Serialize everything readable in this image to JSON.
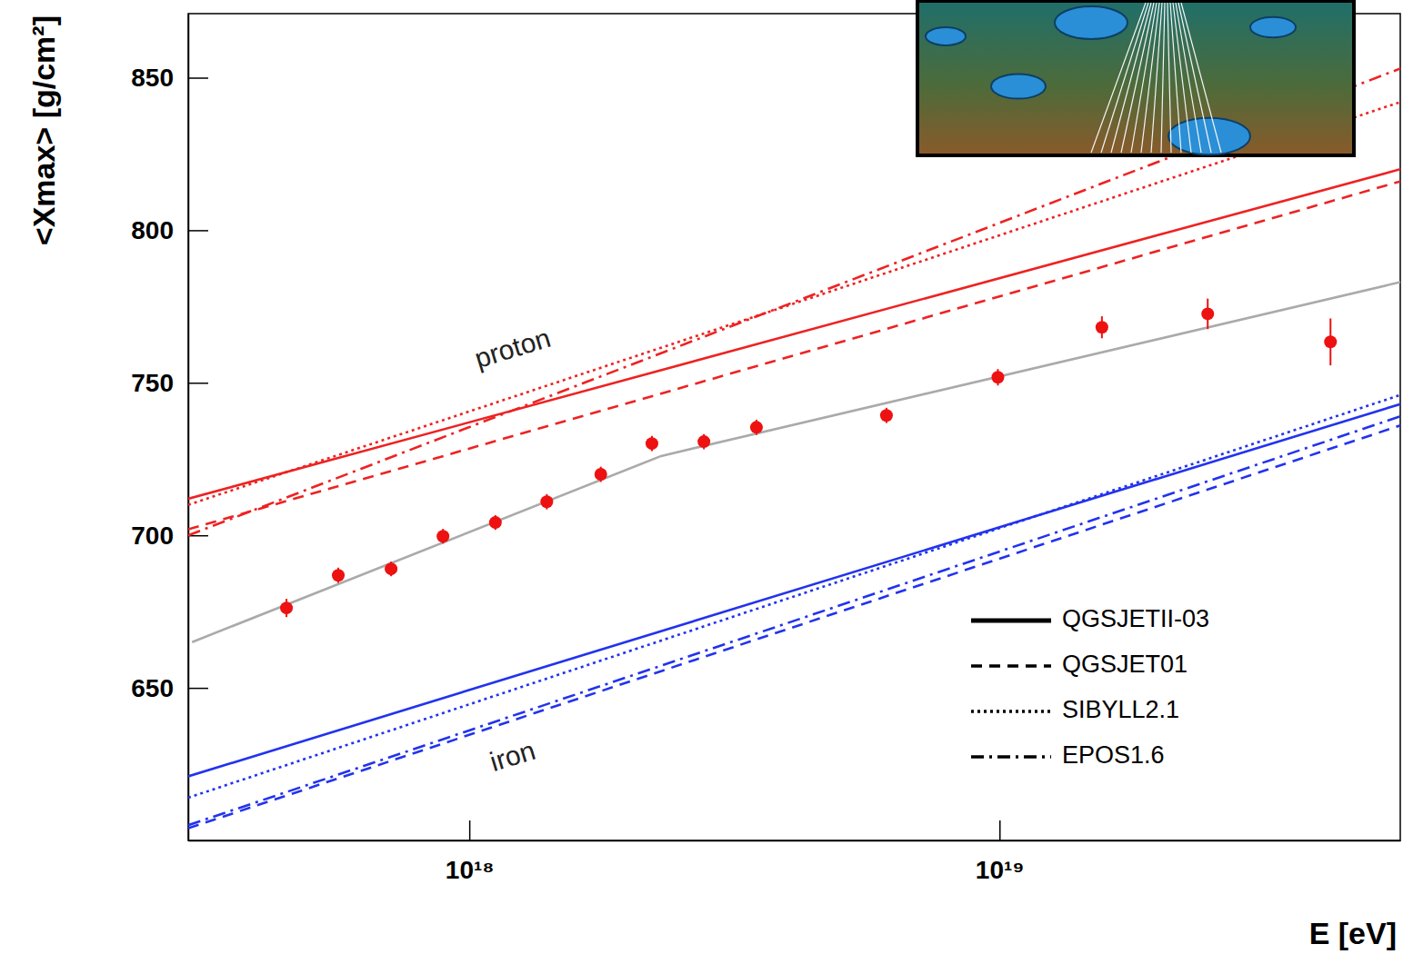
{
  "chart_data": {
    "type": "line",
    "x_label": "E [eV]",
    "y_label": "<Xmax> [g/cm²]",
    "log": "x",
    "legend": "lower right",
    "xlim": [
      2.95e+17,
      5.7e+19
    ],
    "ylim": [
      600,
      871
    ],
    "xticks": [
      {
        "value": 1e+18,
        "label": "10¹⁸"
      },
      {
        "value": 1e+19,
        "label": "10¹⁹"
      }
    ],
    "yticks": [
      650,
      700,
      750,
      800,
      850
    ],
    "annotations": [
      {
        "text": "proton",
        "x": 1.21e+18,
        "y": 760.7
      },
      {
        "text": "iron",
        "x": 1.21e+18,
        "y": 627
      }
    ],
    "series": [
      {
        "name": "QGSJETII-03",
        "type": "line",
        "line_style": "solid",
        "color": "#ee2222",
        "x": [
          2.95e+17,
          5.7e+19
        ],
        "values": [
          712,
          820
        ]
      },
      {
        "name": "QGSJET01",
        "type": "line",
        "line_style": "dashed",
        "color": "#ee2222",
        "x": [
          2.95e+17,
          5.7e+19
        ],
        "values": [
          702,
          816
        ]
      },
      {
        "name": "SIBYLL2.1",
        "type": "line",
        "line_style": "dotted",
        "color": "#ee2222",
        "x": [
          2.95e+17,
          5.7e+19
        ],
        "values": [
          710,
          842
        ]
      },
      {
        "name": "EPOS1.6",
        "type": "line",
        "line_style": "dashdot",
        "color": "#ee2222",
        "x": [
          2.95e+17,
          5.7e+19
        ],
        "values": [
          700,
          853
        ]
      },
      {
        "name": "QGSJETII-03",
        "type": "line",
        "line_style": "solid",
        "color": "#2233ee",
        "x": [
          2.95e+17,
          5.7e+19
        ],
        "values": [
          621,
          743
        ]
      },
      {
        "name": "QGSJET01",
        "type": "line",
        "line_style": "dashed",
        "color": "#2233ee",
        "x": [
          2.95e+17,
          5.7e+19
        ],
        "values": [
          604,
          736
        ]
      },
      {
        "name": "SIBYLL2.1",
        "type": "line",
        "line_style": "dotted",
        "color": "#2233ee",
        "x": [
          2.95e+17,
          5.7e+19
        ],
        "values": [
          614,
          746
        ]
      },
      {
        "name": "EPOS1.6",
        "type": "line",
        "line_style": "dashdot",
        "color": "#2233ee",
        "x": [
          2.95e+17,
          5.7e+19
        ],
        "values": [
          605,
          739
        ]
      },
      {
        "type": "line",
        "line_style": "solid",
        "color": "#aaaaaa",
        "x": [
          3e+17,
          2.3e+18,
          5.7e+19
        ],
        "values": [
          665,
          726,
          783
        ]
      },
      {
        "type": "scatter",
        "marker": "circle",
        "color": "#ee1111",
        "x": [
          4.52e+17,
          5.66e+17,
          7.12e+17,
          8.92e+17,
          1.12e+18,
          1.4e+18,
          1.77e+18,
          2.21e+18,
          2.77e+18,
          3.48e+18,
          6.12e+18,
          9.93e+18,
          1.56e+19,
          2.47e+19,
          4.21e+19
        ],
        "values": [
          676.2,
          686.9,
          689,
          699.7,
          704.2,
          711,
          720,
          730.1,
          730.7,
          735.4,
          739.3,
          751.8,
          768.2,
          772.6,
          763.4
        ],
        "errors": [
          3,
          2.5,
          2.4,
          2.4,
          2.4,
          2.5,
          2.5,
          2.5,
          2.5,
          2.5,
          2.5,
          2.7,
          3.6,
          5,
          7.7
        ]
      }
    ]
  }
}
